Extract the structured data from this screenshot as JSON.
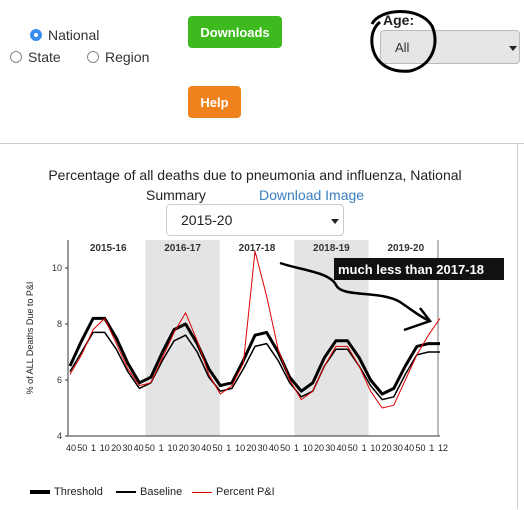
{
  "geo": {
    "options": [
      {
        "label": "National",
        "selected": true
      },
      {
        "label": "State",
        "selected": false
      },
      {
        "label": "Region",
        "selected": false
      }
    ]
  },
  "buttons": {
    "downloads": "Downloads",
    "help": "Help",
    "downloads_color": "#3fba1e",
    "help_color": "#f0821e"
  },
  "age": {
    "label": "Age:",
    "value": "All"
  },
  "chart": {
    "title_line1": "Percentage of all deaths due to pneumonia and influenza, National",
    "title_line2": "Summary",
    "download_image": "Download Image",
    "season_value": "2015-20",
    "annotation": "much less than 2017-18"
  },
  "chart_data": {
    "type": "line",
    "title": "Percentage of all deaths due to pneumonia and influenza, National Summary",
    "ylabel": "% of ALL Deaths Due to P&I",
    "xlabel": "",
    "ylim": [
      4,
      11
    ],
    "yticks": [
      4,
      6,
      8,
      10
    ],
    "seasons": [
      "2015-16",
      "2016-17",
      "2017-18",
      "2018-19",
      "2019-20"
    ],
    "xtick_labels": [
      "40",
      "50",
      "1",
      "10",
      "20",
      "30",
      "40",
      "50",
      "1",
      "10",
      "20",
      "30",
      "40",
      "50",
      "1",
      "10",
      "20",
      "30",
      "40",
      "50",
      "1",
      "10",
      "20",
      "30",
      "40",
      "50",
      "1",
      "10",
      "20",
      "30",
      "40",
      "50",
      "1",
      "12"
    ],
    "series": [
      {
        "name": "Threshold",
        "color": "#000000",
        "values": [
          6.5,
          7.4,
          8.2,
          8.2,
          7.5,
          6.6,
          5.9,
          6.1,
          7.0,
          7.8,
          8.0,
          7.3,
          6.4,
          5.8,
          5.9,
          6.7,
          7.6,
          7.7,
          7.0,
          6.1,
          5.6,
          5.9,
          6.8,
          7.4,
          7.4,
          6.8,
          6.0,
          5.5,
          5.7,
          6.5,
          7.2,
          7.3,
          7.3
        ]
      },
      {
        "name": "Baseline",
        "color": "#000000",
        "values": [
          6.3,
          7.0,
          7.7,
          7.7,
          7.1,
          6.3,
          5.7,
          5.9,
          6.7,
          7.4,
          7.6,
          7.0,
          6.1,
          5.6,
          5.7,
          6.4,
          7.2,
          7.3,
          6.7,
          5.9,
          5.4,
          5.6,
          6.5,
          7.1,
          7.1,
          6.5,
          5.8,
          5.3,
          5.4,
          6.2,
          6.9,
          7.0,
          7.0
        ]
      },
      {
        "name": "Percent P&I",
        "color": "#dd0000",
        "values": [
          6.2,
          6.9,
          7.8,
          8.2,
          7.3,
          6.4,
          5.8,
          5.9,
          6.8,
          7.7,
          8.4,
          7.4,
          6.2,
          5.5,
          5.8,
          6.6,
          10.6,
          9.0,
          7.1,
          6.0,
          5.3,
          5.6,
          6.5,
          7.2,
          7.2,
          6.5,
          5.6,
          5.0,
          5.1,
          6.0,
          6.9,
          7.6,
          8.2
        ]
      }
    ],
    "legend": [
      "Threshold",
      "Baseline",
      "Percent P&I"
    ],
    "legend_position": "bottom",
    "shaded_seasons": [
      "2016-17",
      "2018-19"
    ]
  }
}
